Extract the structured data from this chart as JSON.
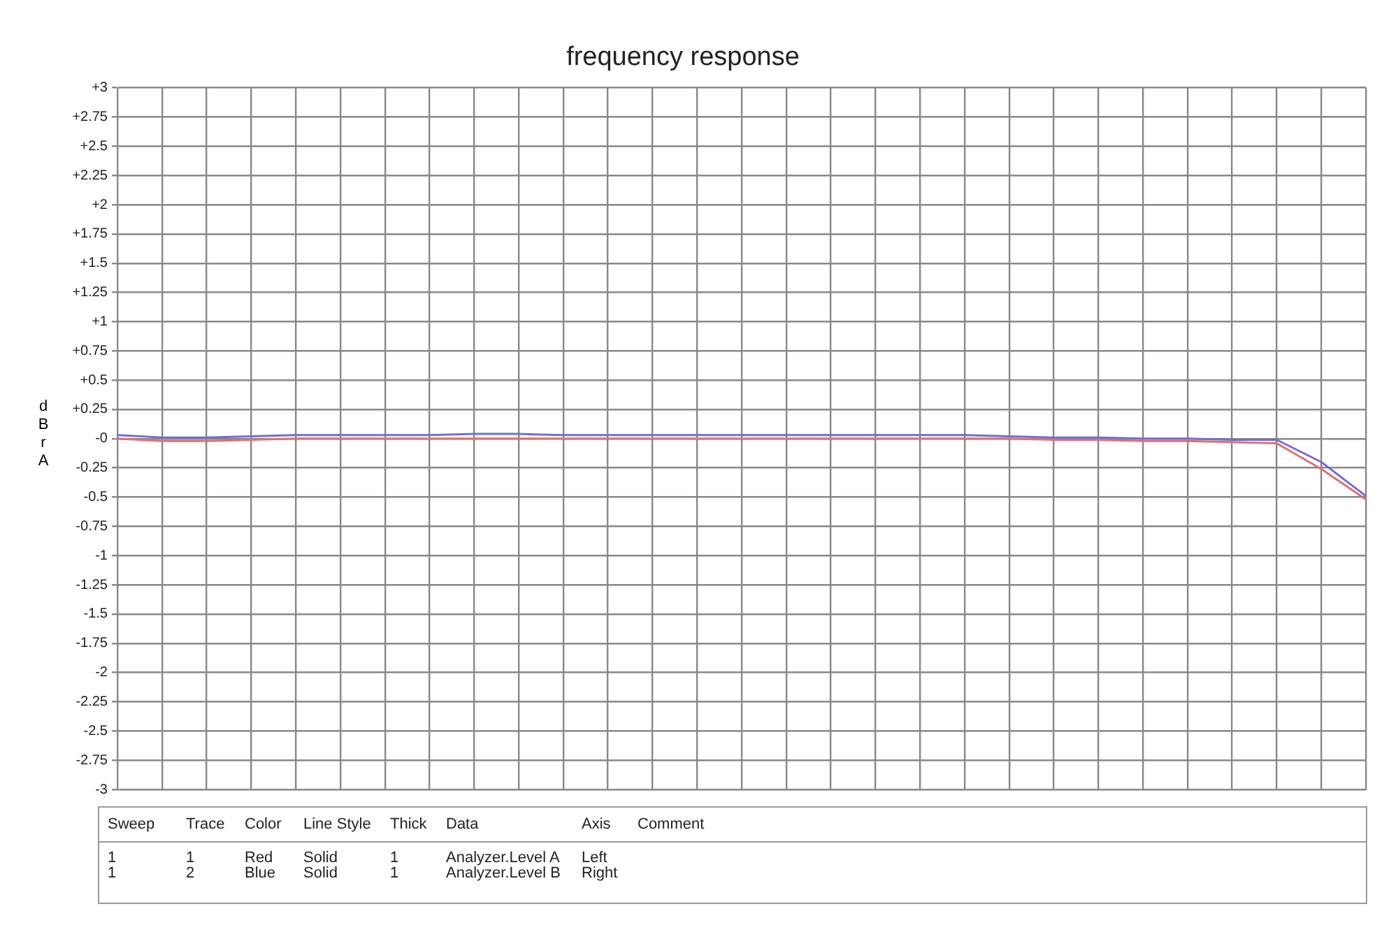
{
  "chart_data": {
    "type": "line",
    "title": "frequency response",
    "ylabel": "dBr A",
    "categories": [
      null,
      null,
      null,
      null,
      null,
      null,
      null,
      null,
      null,
      null,
      null,
      null,
      null,
      null,
      null,
      null,
      null,
      null,
      null,
      null,
      null,
      null,
      null,
      null,
      null,
      null,
      null,
      null,
      null
    ],
    "series": [
      {
        "color": "#e07070",
        "values": [
          0,
          -0.02,
          -0.02,
          -0.01,
          0,
          0,
          0,
          0,
          0,
          0,
          0,
          0,
          0,
          0,
          0,
          0,
          0,
          0,
          0,
          0,
          0,
          -0.01,
          -0.01,
          -0.02,
          -0.02,
          -0.03,
          -0.04,
          -0.26,
          -0.52
        ]
      },
      {
        "color": "#6f6fd8",
        "values": [
          0.03,
          0.01,
          0.01,
          0.02,
          0.03,
          0.03,
          0.03,
          0.03,
          0.04,
          0.04,
          0.03,
          0.03,
          0.03,
          0.03,
          0.03,
          0.03,
          0.03,
          0.03,
          0.03,
          0.03,
          0.02,
          0.01,
          0.01,
          0,
          0,
          -0.01,
          -0.01,
          -0.2,
          -0.49
        ]
      }
    ],
    "ylim": [
      -3,
      3
    ],
    "yticks": [
      {
        "value": 3,
        "label": "+3"
      },
      {
        "value": 2.75,
        "label": "+2.75"
      },
      {
        "value": 2.5,
        "label": "+2.5"
      },
      {
        "value": 2.25,
        "label": "+2.25"
      },
      {
        "value": 2,
        "label": "+2"
      },
      {
        "value": 1.75,
        "label": "+1.75"
      },
      {
        "value": 1.5,
        "label": "+1.5"
      },
      {
        "value": 1.25,
        "label": "+1.25"
      },
      {
        "value": 1,
        "label": "+1"
      },
      {
        "value": 0.75,
        "label": "+0.75"
      },
      {
        "value": 0.5,
        "label": "+0.5"
      },
      {
        "value": 0.25,
        "label": "+0.25"
      },
      {
        "value": 0,
        "label": "-0"
      },
      -0.25,
      -0.5,
      -0.75,
      -1,
      -1.25,
      -1.5,
      -1.75,
      -2,
      -2.25,
      -2.5,
      -2.75,
      -3
    ],
    "grid": true,
    "legend": false,
    "tick_labels": "y",
    "marker": "none",
    "line_style": "solid",
    "annotations": [
      "Sweep",
      "Trace",
      "Color",
      "Line Style",
      "Thick",
      "Data",
      "Axis",
      "Comment",
      "1",
      "1",
      "Red",
      "Solid",
      "1",
      "Analyzer.Level A",
      "Left",
      "1",
      "2",
      "Blue",
      "Solid",
      "1",
      "Analyzer.Level B",
      "Right"
    ]
  }
}
